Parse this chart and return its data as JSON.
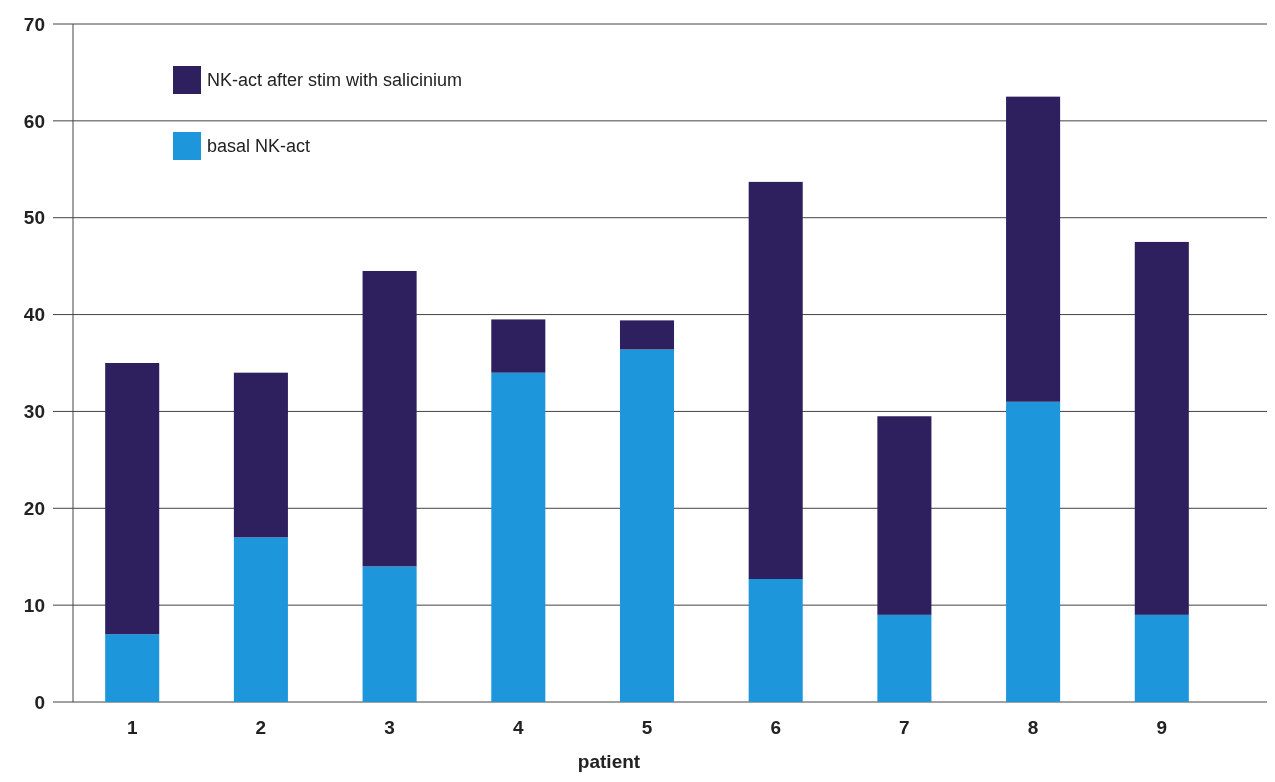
{
  "chart_data": {
    "type": "bar",
    "stacked": true,
    "xlabel": "patient",
    "categories": [
      "1",
      "2",
      "3",
      "4",
      "5",
      "6",
      "7",
      "8",
      "9"
    ],
    "series": [
      {
        "name": "basal NK-act",
        "color": "#1e96dc",
        "values": [
          7,
          17,
          14,
          34,
          36.4,
          12.7,
          9,
          31,
          9
        ]
      },
      {
        "name": "NK-act after stim with salicinium",
        "color": "#2e1f5e",
        "values": [
          28,
          17,
          30.5,
          5.5,
          3,
          41,
          20.5,
          31.5,
          38.5
        ]
      }
    ],
    "ylim": [
      0,
      70
    ],
    "yticks": [
      0,
      10,
      20,
      30,
      40,
      50,
      60,
      70
    ],
    "grid": "y",
    "legend": "top left"
  }
}
